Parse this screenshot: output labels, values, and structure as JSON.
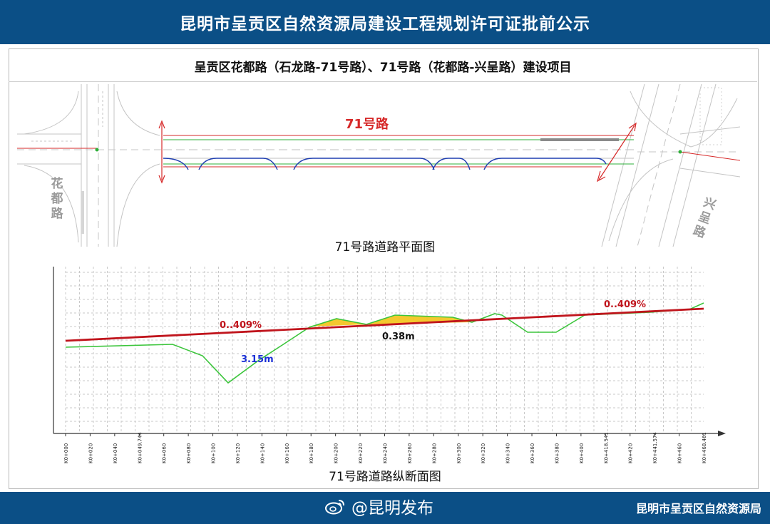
{
  "header": {
    "title": "昆明市呈贡区自然资源局建设工程规划许可证批前公示"
  },
  "project": {
    "title": "呈贡区花都路（石龙路-71号路）、71号路（花都路-兴呈路）建设项目"
  },
  "plan_view": {
    "road_label": "71号路",
    "left_road": "花都路",
    "right_road": "兴呈路",
    "caption": "71号路道路平面图",
    "colors": {
      "road_line": "#d62828",
      "green_line": "#2eaf3a",
      "curb": "#1f3fb0",
      "linework": "#b5b5b5"
    }
  },
  "profile_view": {
    "caption": "71号路道路纵断面图",
    "grade_left": "0..409%",
    "grade_right": "0..409%",
    "fill_height_label": "0.38m",
    "cut_depth_label": "3.15m",
    "colors": {
      "design_line": "#c0141c",
      "ground_line": "#3cc53c",
      "fill_area": "#f3c317",
      "grade_text": "#c0141c",
      "depth_text": "#1a2fd6"
    },
    "stations": [
      "K0+000",
      "K0+020",
      "K0+040",
      "K0+049.744",
      "K0+060",
      "K0+080",
      "K0+100",
      "K0+120",
      "K0+140",
      "K0+160",
      "K0+180",
      "K0+200",
      "K0+220",
      "K0+240",
      "K0+260",
      "K0+280",
      "K0+300",
      "K0+320",
      "K0+340",
      "K0+360",
      "K0+380",
      "K0+400",
      "K0+418.541",
      "K0+420",
      "K0+441.574",
      "K0+460",
      "K0+468.461"
    ]
  },
  "footer": {
    "handle": "@昆明发布",
    "organization": "昆明市呈贡区自然资源局",
    "logo_icon": "weibo-icon"
  }
}
